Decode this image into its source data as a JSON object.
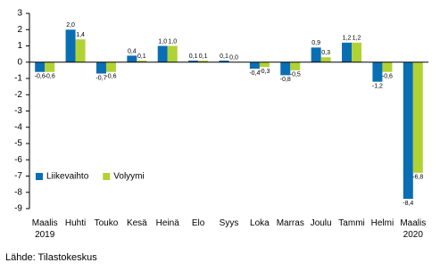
{
  "chart_data": {
    "type": "bar",
    "categories": [
      "Maalis 2019",
      "Huhti",
      "Touko",
      "Kesä",
      "Heinä",
      "Elo",
      "Syys",
      "Loka",
      "Marras",
      "Joulu",
      "Tammi",
      "Helmi",
      "Maalis 2020"
    ],
    "series": [
      {
        "name": "Liikevaihto",
        "color": "#0a6eb4",
        "values": [
          -0.6,
          2.0,
          -0.7,
          0.4,
          1.0,
          0.1,
          0.1,
          -0.4,
          -0.8,
          0.9,
          1.2,
          -1.2,
          -8.4
        ],
        "value_labels": [
          "-0,6",
          "2,0",
          "-0,7",
          "0,4",
          "1,0",
          "0,1",
          "0,1",
          "-0,4",
          "-0,8",
          "0,9",
          "1,2",
          "-1,2",
          "-8,4"
        ]
      },
      {
        "name": "Volyymi",
        "color": "#b1d234",
        "values": [
          -0.6,
          1.4,
          -0.6,
          0.1,
          1.0,
          0.1,
          0.0,
          -0.3,
          -0.5,
          0.3,
          1.2,
          -0.6,
          -6.8
        ],
        "value_labels": [
          "-0,6",
          "1,4",
          "-0,6",
          "0,1",
          "1,0",
          "0,1",
          "0,0",
          "-0,3",
          "-0,5",
          "0,3",
          "1,2",
          "-0,6",
          "-6,8"
        ]
      }
    ],
    "ylim": [
      -9,
      3
    ],
    "yticks": [
      3,
      2,
      1,
      0,
      -1,
      -2,
      -3,
      -4,
      -5,
      -6,
      -7,
      -8,
      -9
    ],
    "legend": "lower left",
    "source": "Lähde: Tilastokeskus"
  }
}
